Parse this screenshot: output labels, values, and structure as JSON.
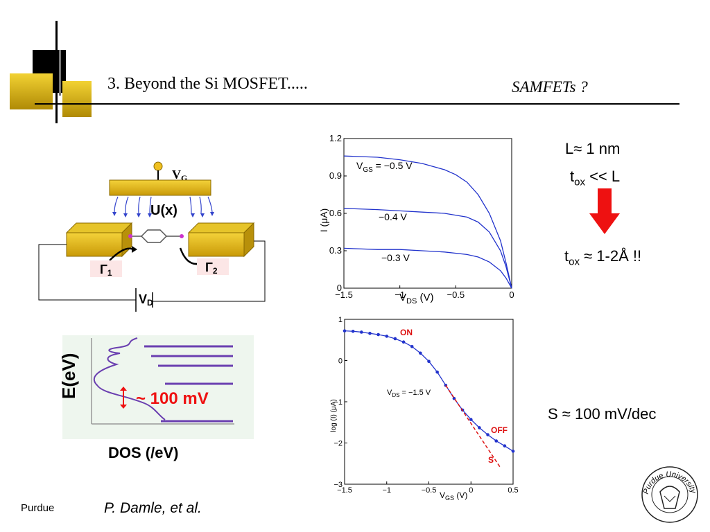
{
  "header": {
    "title": "3.  Beyond the Si MOSFET.....",
    "subtitle": "SAMFETs ?"
  },
  "device": {
    "gate_label": "V",
    "gate_sub": "G",
    "potential_label": "U(x)",
    "gamma1": "Γ",
    "gamma1_sub": "1",
    "gamma2": "Γ",
    "gamma2_sub": "2",
    "drain_label": "V",
    "drain_sub": "D"
  },
  "dos": {
    "ylabel": "E(eV)",
    "xlabel": "DOS (/eV)",
    "annotation": "~ 100 mV"
  },
  "notes": {
    "length": "L≈ 1 nm",
    "tox_prefix": "t",
    "tox_sub": "ox",
    "tox_suffix": " << L",
    "tox2_prefix": "t",
    "tox2_sub": "ox",
    "tox2_suffix": " ≈ 1-2Å !!",
    "slope": "S ≈ 100 mV/dec"
  },
  "footer": {
    "left": "Purdue",
    "center": "P. Damle, et al."
  },
  "logo": {
    "text": "Purdue University"
  },
  "colors": {
    "gold": "#D4AA10",
    "curve_blue": "#2233CC",
    "arrow_red": "#EE1111",
    "dos_purple": "#6A3FB0"
  },
  "chart_data": [
    {
      "type": "line",
      "title": "",
      "xlabel": "V (V)",
      "xlabel_sub": "DS",
      "ylabel": "I (μA)",
      "xlim": [
        -1.5,
        0
      ],
      "ylim": [
        0,
        1.2
      ],
      "xticks": [
        "−1.5",
        "−1",
        "−0.5",
        "0"
      ],
      "yticks": [
        "0",
        "0.3",
        "0.6",
        "0.9",
        "1.2"
      ],
      "series": [
        {
          "name": "V  = −0.5 V",
          "x": [
            -1.5,
            -1.2,
            -1.0,
            -0.8,
            -0.6,
            -0.5,
            -0.4,
            -0.3,
            -0.2,
            -0.1,
            -0.05,
            0
          ],
          "y": [
            1.06,
            1.05,
            1.03,
            1.0,
            0.95,
            0.91,
            0.85,
            0.75,
            0.6,
            0.38,
            0.2,
            0
          ]
        },
        {
          "name": "−0.4 V",
          "x": [
            -1.5,
            -1.2,
            -1.0,
            -0.8,
            -0.6,
            -0.4,
            -0.3,
            -0.2,
            -0.1,
            -0.05,
            0
          ],
          "y": [
            0.64,
            0.63,
            0.62,
            0.61,
            0.6,
            0.57,
            0.53,
            0.45,
            0.3,
            0.17,
            0
          ]
        },
        {
          "name": "−0.3 V",
          "x": [
            -1.5,
            -1.2,
            -1.0,
            -0.8,
            -0.6,
            -0.4,
            -0.3,
            -0.2,
            -0.1,
            -0.05,
            0
          ],
          "y": [
            0.32,
            0.31,
            0.31,
            0.3,
            0.29,
            0.27,
            0.25,
            0.21,
            0.14,
            0.08,
            0
          ]
        }
      ]
    },
    {
      "type": "line",
      "title": "",
      "xlabel": "V (V)",
      "xlabel_sub": "GS",
      "ylabel": "log (I) (μA)",
      "xlim": [
        -1.5,
        0.5
      ],
      "ylim": [
        -3,
        1
      ],
      "xticks": [
        "−1.5",
        "−1",
        "−0.5",
        "0",
        "0.5"
      ],
      "yticks": [
        "−3",
        "−2",
        "−1",
        "0",
        "1"
      ],
      "annotation": "V  = −1.5 V",
      "annotation_sub": "DS",
      "labels": {
        "on": "ON",
        "off": "OFF",
        "s": "S"
      },
      "series": [
        {
          "name": "",
          "x": [
            -1.5,
            -1.4,
            -1.3,
            -1.2,
            -1.1,
            -1.0,
            -0.9,
            -0.8,
            -0.7,
            -0.6,
            -0.5,
            -0.4,
            -0.3,
            -0.2,
            -0.1,
            0,
            0.1,
            0.2,
            0.3,
            0.4,
            0.5
          ],
          "y": [
            0.72,
            0.71,
            0.69,
            0.66,
            0.63,
            0.59,
            0.53,
            0.45,
            0.34,
            0.18,
            -0.02,
            -0.28,
            -0.6,
            -0.92,
            -1.2,
            -1.43,
            -1.63,
            -1.8,
            -1.95,
            -2.07,
            -2.2
          ]
        },
        {
          "name": "",
          "style": "dashed",
          "x": [
            -0.3,
            0.35
          ],
          "y": [
            -0.6,
            -2.6
          ]
        }
      ]
    }
  ]
}
